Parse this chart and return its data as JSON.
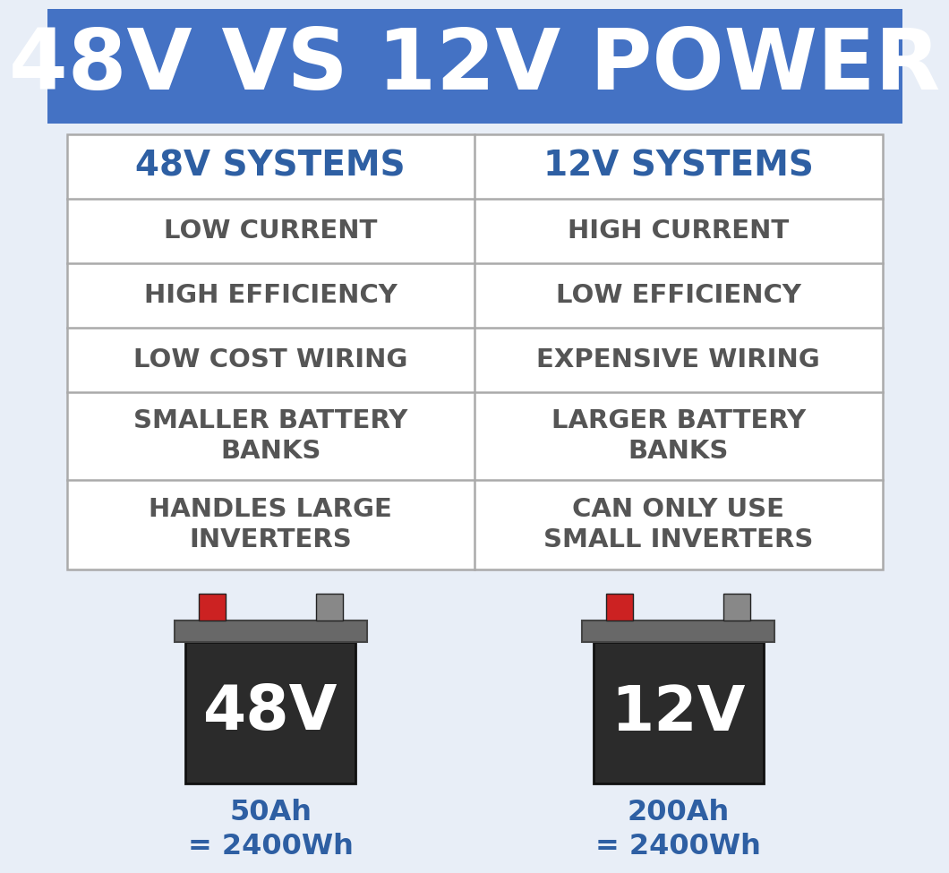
{
  "title": "48V VS 12V POWER",
  "title_bg_color": "#4472C4",
  "title_text_color": "#FFFFFF",
  "background_color": "#E8EEF7",
  "header_48v": "48V SYSTEMS",
  "header_12v": "12V SYSTEMS",
  "header_text_color": "#2E5FA3",
  "rows": [
    [
      "LOW CURRENT",
      "HIGH CURRENT"
    ],
    [
      "HIGH EFFICIENCY",
      "LOW EFFICIENCY"
    ],
    [
      "LOW COST WIRING",
      "EXPENSIVE WIRING"
    ],
    [
      "SMALLER BATTERY\nBANKS",
      "LARGER BATTERY\nBANKS"
    ],
    [
      "HANDLES LARGE\nINVERTERS",
      "CAN ONLY USE\nSMALL INVERTERS"
    ]
  ],
  "row_text_color": "#555555",
  "grid_color": "#AAAAAA",
  "table_bg_color": "#FFFFFF",
  "battery_body_color": "#2B2B2B",
  "battery_top_color": "#686868",
  "battery_terminal_neg_color": "#888888",
  "battery_terminal_pos_color": "#CC2222",
  "battery_text_color": "#FFFFFF",
  "battery_label_color": "#2E5FA3",
  "battery_48v_label1": "50Ah",
  "battery_48v_label2": "= 2400Wh",
  "battery_12v_label1": "200Ah",
  "battery_12v_label2": "= 2400Wh",
  "battery_48v_text": "48V",
  "battery_12v_text": "12V"
}
